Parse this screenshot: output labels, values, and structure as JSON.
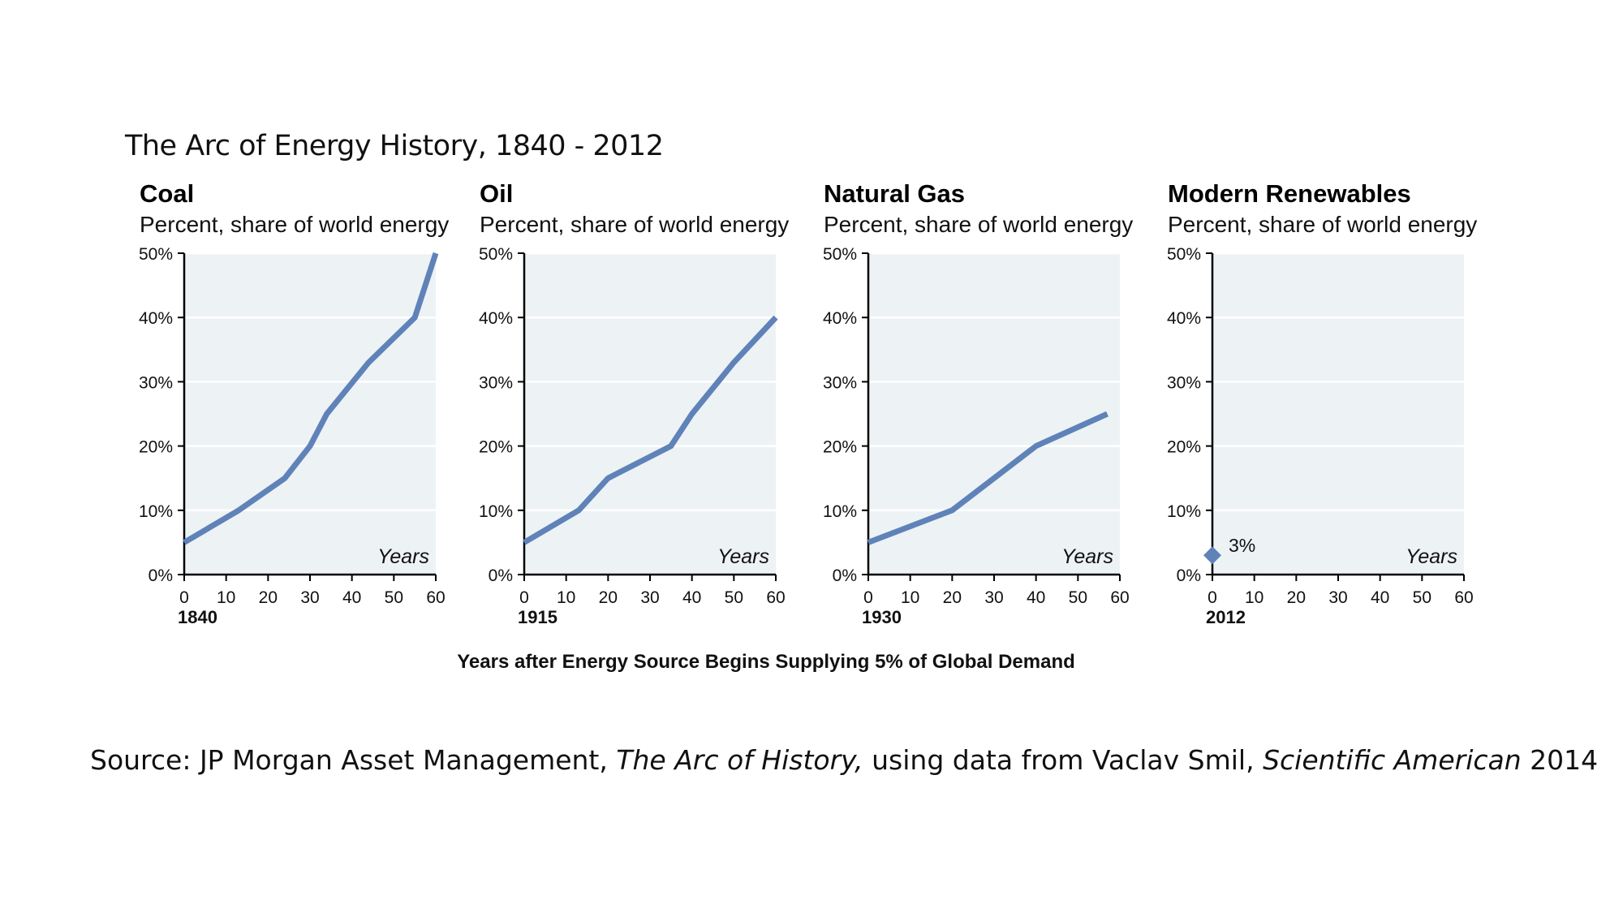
{
  "title": "The Arc of Energy History, 1840 - 2012",
  "source": {
    "prefix": "Source: JP Morgan Asset Management, ",
    "work": "The Arc of History,",
    "middle": " using data from Vaclav Smil, ",
    "journal": "Scientific American",
    "suffix": " 2014"
  },
  "colors": {
    "line": "#5f82b8",
    "plot_bg": "#edf2f5",
    "grid": "#ffffff",
    "axis": "#000000"
  },
  "chart_data": [
    {
      "type": "line",
      "title": "Coal",
      "subtitle": "Percent, share of world energy",
      "start_year": "1840",
      "x_annotation": "Years",
      "xlim": [
        0,
        60
      ],
      "ylim": [
        0,
        50
      ],
      "xticks": [
        0,
        10,
        20,
        30,
        40,
        50,
        60
      ],
      "yticks": [
        "0%",
        "10%",
        "20%",
        "30%",
        "40%",
        "50%"
      ],
      "grid": true,
      "series": [
        {
          "x": [
            0,
            13,
            24,
            30,
            34,
            44,
            55,
            60
          ],
          "y": [
            5,
            10,
            15,
            20,
            25,
            33,
            40,
            50
          ]
        }
      ]
    },
    {
      "type": "line",
      "title": "Oil",
      "subtitle": "Percent, share of world energy",
      "start_year": "1915",
      "x_annotation": "Years",
      "xlim": [
        0,
        60
      ],
      "ylim": [
        0,
        50
      ],
      "xticks": [
        0,
        10,
        20,
        30,
        40,
        50,
        60
      ],
      "yticks": [
        "0%",
        "10%",
        "20%",
        "30%",
        "40%",
        "50%"
      ],
      "grid": true,
      "series": [
        {
          "x": [
            0,
            13,
            20,
            35,
            40,
            50,
            60
          ],
          "y": [
            5,
            10,
            15,
            20,
            25,
            33,
            40
          ]
        }
      ]
    },
    {
      "type": "line",
      "title": "Natural Gas",
      "subtitle": "Percent, share of world energy",
      "start_year": "1930",
      "x_annotation": "Years",
      "xlim": [
        0,
        60
      ],
      "ylim": [
        0,
        50
      ],
      "xticks": [
        0,
        10,
        20,
        30,
        40,
        50,
        60
      ],
      "yticks": [
        "0%",
        "10%",
        "20%",
        "30%",
        "40%",
        "50%"
      ],
      "grid": true,
      "series": [
        {
          "x": [
            0,
            20,
            30,
            40,
            57
          ],
          "y": [
            5,
            10,
            15,
            20,
            25
          ]
        }
      ]
    },
    {
      "type": "scatter",
      "title": "Modern Renewables",
      "subtitle": "Percent, share of world energy",
      "start_year": "2012",
      "x_annotation": "Years",
      "xlim": [
        0,
        60
      ],
      "ylim": [
        0,
        50
      ],
      "xticks": [
        0,
        10,
        20,
        30,
        40,
        50,
        60
      ],
      "yticks": [
        "0%",
        "10%",
        "20%",
        "30%",
        "40%",
        "50%"
      ],
      "grid": true,
      "marker": "diamond",
      "series": [
        {
          "x": [
            0
          ],
          "y": [
            3
          ]
        }
      ],
      "annotation": "3%"
    }
  ],
  "shared_xlabel": "Years after Energy Source Begins Supplying 5% of Global Demand"
}
